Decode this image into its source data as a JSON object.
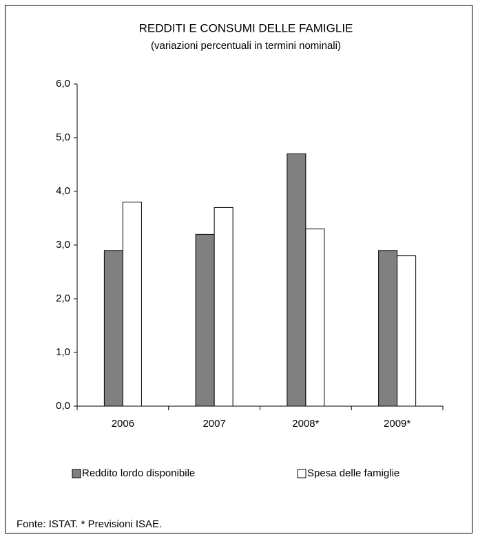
{
  "chart_data": {
    "type": "bar",
    "title": "REDDITI E CONSUMI DELLE FAMIGLIE",
    "subtitle": "(variazioni percentuali in termini nominali)",
    "categories": [
      "2006",
      "2007",
      "2008*",
      "2009*"
    ],
    "series": [
      {
        "name": "Reddito lordo disponibile",
        "color": "#808080",
        "values": [
          2.9,
          3.2,
          4.7,
          2.9
        ]
      },
      {
        "name": "Spesa delle famiglie",
        "color": "#ffffff",
        "values": [
          3.8,
          3.7,
          3.3,
          2.8
        ]
      }
    ],
    "ylim": [
      0,
      6
    ],
    "yticks": [
      {
        "value": 0,
        "label": "0,0"
      },
      {
        "value": 1,
        "label": "1,0"
      },
      {
        "value": 2,
        "label": "2,0"
      },
      {
        "value": 3,
        "label": "3,0"
      },
      {
        "value": 4,
        "label": "4,0"
      },
      {
        "value": 5,
        "label": "5,0"
      },
      {
        "value": 6,
        "label": "6,0"
      }
    ],
    "legend": "bottom",
    "source": "Fonte: ISTAT. * Previsioni ISAE."
  }
}
